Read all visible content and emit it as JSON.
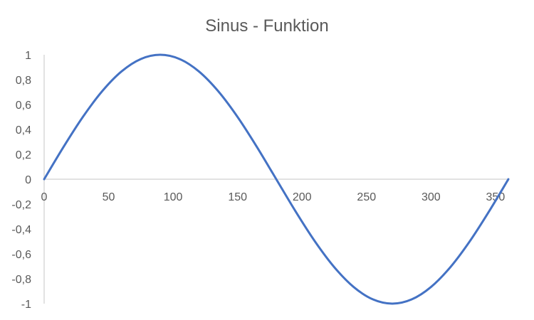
{
  "chart_data": {
    "type": "line",
    "title": "Sinus - Funktion",
    "xlabel": "",
    "ylabel": "",
    "xlim": [
      0,
      360
    ],
    "ylim": [
      -1,
      1
    ],
    "x_ticks": [
      0,
      50,
      100,
      150,
      200,
      250,
      300,
      350
    ],
    "y_ticks": [
      1,
      0.8,
      0.6,
      0.4,
      0.2,
      0,
      -0.2,
      -0.4,
      -0.6,
      -0.8,
      -1
    ],
    "x_tick_labels": [
      "0",
      "50",
      "100",
      "150",
      "200",
      "250",
      "300",
      "350"
    ],
    "y_tick_labels": [
      "1",
      "0,8",
      "0,6",
      "0,4",
      "0,2",
      "0",
      "-0,2",
      "-0,4",
      "-0,6",
      "-0,8",
      "-1"
    ],
    "grid": false,
    "legend": "none",
    "series": [
      {
        "color": "#4472c4",
        "x": [
          0,
          15,
          30,
          45,
          60,
          75,
          90,
          105,
          120,
          135,
          150,
          165,
          180,
          195,
          210,
          225,
          240,
          255,
          270,
          285,
          300,
          315,
          330,
          345,
          360
        ],
        "values": [
          0,
          0.259,
          0.5,
          0.707,
          0.866,
          0.966,
          1,
          0.966,
          0.866,
          0.707,
          0.5,
          0.259,
          0,
          -0.259,
          -0.5,
          -0.707,
          -0.866,
          -0.966,
          -1,
          -0.966,
          -0.866,
          -0.707,
          -0.5,
          -0.259,
          0
        ]
      }
    ]
  }
}
